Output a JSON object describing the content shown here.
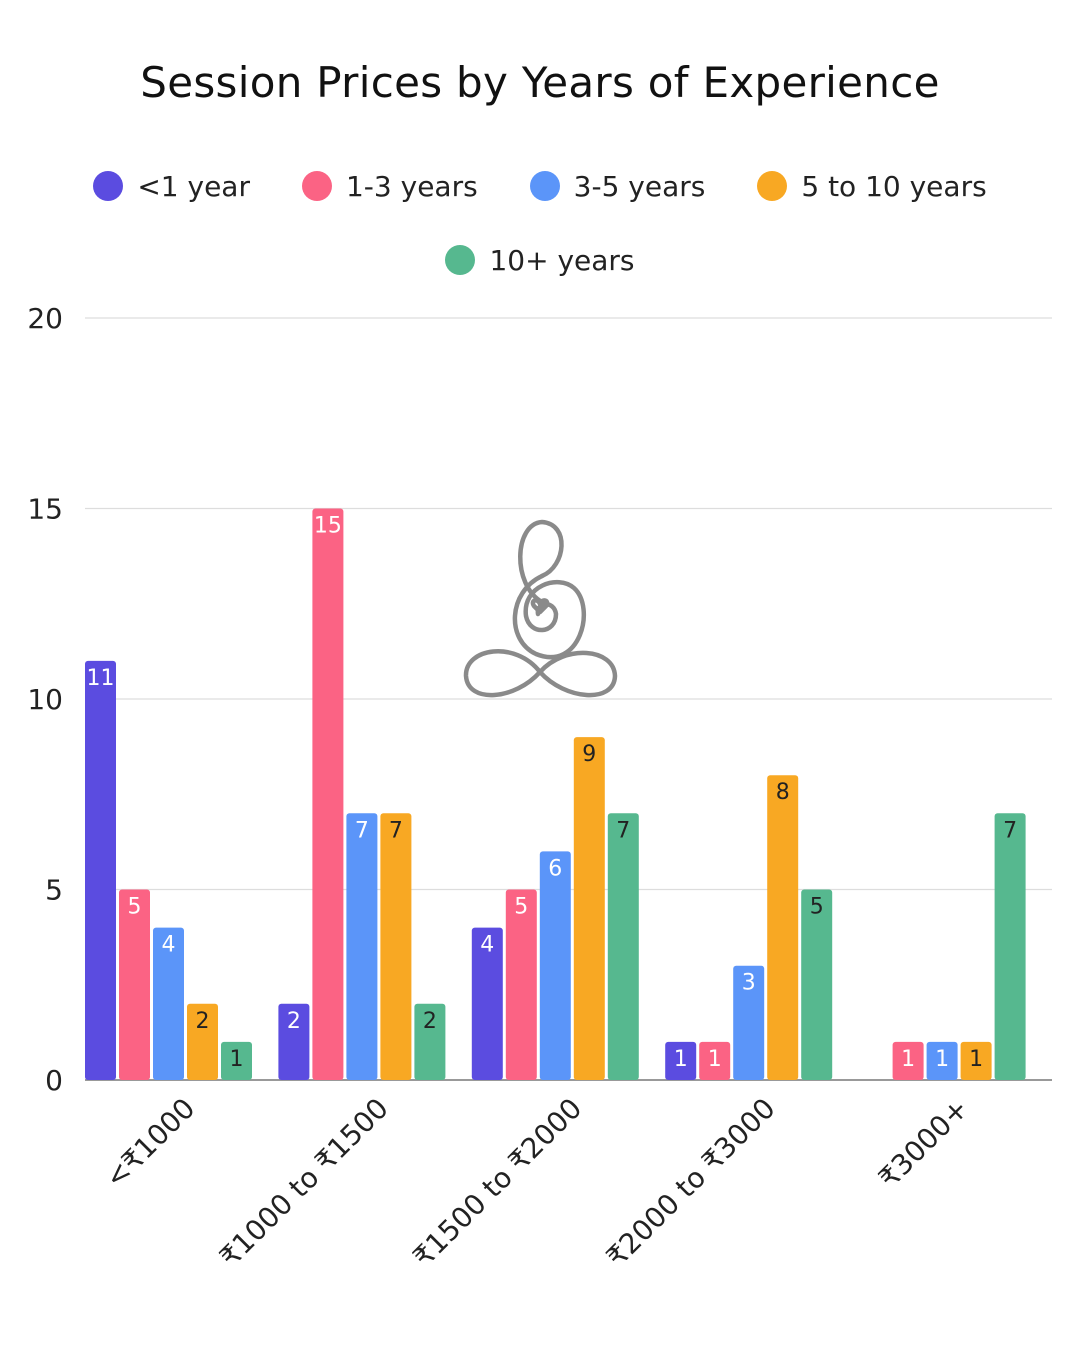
{
  "chart_data": {
    "type": "bar",
    "title": "Session Prices by Years of Experience",
    "xlabel": "",
    "ylabel": "",
    "ylim": [
      0,
      20
    ],
    "yticks": [
      0,
      5,
      10,
      15,
      20
    ],
    "grid": true,
    "legend_position": "top",
    "categories": [
      "<₹1000",
      "₹1000 to ₹1500",
      "₹1500 to ₹2000",
      "₹2000 to ₹3000",
      "₹3000+"
    ],
    "series": [
      {
        "name": "<1 year",
        "color": "#5b4ce0",
        "label_color": "#ffffff",
        "values": [
          11,
          2,
          4,
          1,
          0
        ]
      },
      {
        "name": "1-3 years",
        "color": "#fb6384",
        "label_color": "#ffffff",
        "values": [
          5,
          15,
          5,
          1,
          1
        ]
      },
      {
        "name": "3-5 years",
        "color": "#5b95f9",
        "label_color": "#ffffff",
        "values": [
          4,
          7,
          6,
          3,
          1
        ]
      },
      {
        "name": "5 to 10 years",
        "color": "#f8a823",
        "label_color": "#222222",
        "values": [
          2,
          7,
          9,
          8,
          1
        ]
      },
      {
        "name": "10+ years",
        "color": "#56b88f",
        "label_color": "#222222",
        "values": [
          1,
          2,
          7,
          5,
          7
        ]
      }
    ]
  },
  "decoration": {
    "logo": "meditation-figure-icon",
    "logo_color": "#8a8a8a",
    "grid_color": "#dddddd",
    "axis_color": "#999999"
  }
}
